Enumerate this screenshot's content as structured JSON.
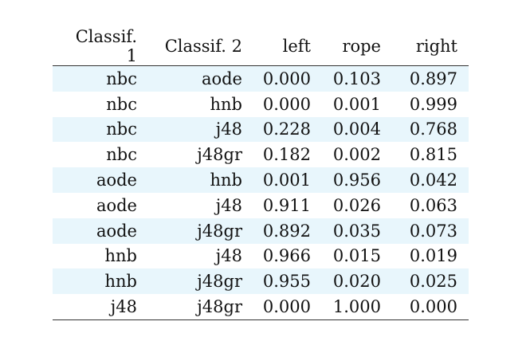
{
  "table": {
    "headers": [
      "Classif. 1",
      "Classif. 2",
      "left",
      "rope",
      "right"
    ],
    "rows": [
      [
        "nbc",
        "aode",
        "0.000",
        "0.103",
        "0.897"
      ],
      [
        "nbc",
        "hnb",
        "0.000",
        "0.001",
        "0.999"
      ],
      [
        "nbc",
        "j48",
        "0.228",
        "0.004",
        "0.768"
      ],
      [
        "nbc",
        "j48gr",
        "0.182",
        "0.002",
        "0.815"
      ],
      [
        "aode",
        "hnb",
        "0.001",
        "0.956",
        "0.042"
      ],
      [
        "aode",
        "j48",
        "0.911",
        "0.026",
        "0.063"
      ],
      [
        "aode",
        "j48gr",
        "0.892",
        "0.035",
        "0.073"
      ],
      [
        "hnb",
        "j48",
        "0.966",
        "0.015",
        "0.019"
      ],
      [
        "hnb",
        "j48gr",
        "0.955",
        "0.020",
        "0.025"
      ],
      [
        "j48",
        "j48gr",
        "0.000",
        "1.000",
        "0.000"
      ]
    ],
    "shaded_row_color": "#e8f6fc",
    "rule_color": "#333333"
  }
}
